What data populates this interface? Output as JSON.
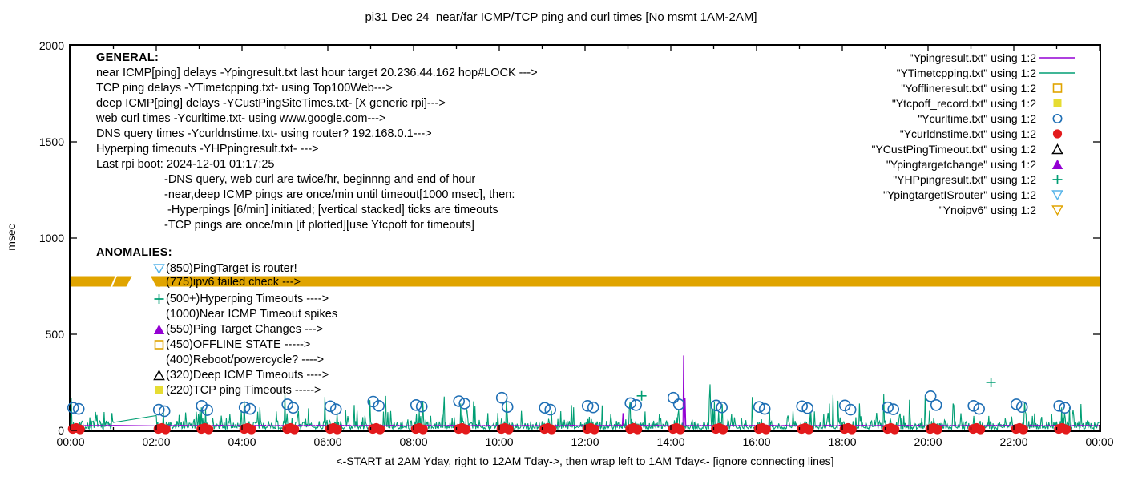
{
  "title": "pi31 Dec 24  near/far ICMP/TCP ping and curl times [No msmt 1AM-2AM]",
  "caption": "<-START at 2AM Yday, right to 12AM Tday->, then wrap left to 1AM Tday<- [ignore connecting lines]",
  "y_axis": {
    "label": "msec",
    "ticks": [
      "2000",
      "1500",
      "1000",
      "500",
      "0"
    ],
    "tick_values": [
      2000,
      1500,
      1000,
      500,
      0
    ]
  },
  "x_axis": {
    "ticks": [
      "00:00",
      "02:00",
      "04:00",
      "06:00",
      "08:00",
      "10:00",
      "12:00",
      "14:00",
      "16:00",
      "18:00",
      "20:00",
      "22:00",
      "00:00"
    ]
  },
  "annotations": {
    "general": {
      "header": "GENERAL:",
      "lines": [
        "near ICMP[ping] delays -Ypingresult.txt last hour target 20.236.44.162 hop#LOCK --->",
        "TCP ping delays -YTimetcpping.txt- using Top100Web--->",
        "deep ICMP[ping] delays -YCustPingSiteTimes.txt- [X generic rpi]--->",
        "web curl times -Ycurltime.txt- using www.google.com--->",
        "DNS query times -Ycurldnstime.txt- using router? 192.168.0.1--->",
        "Hyperping timeouts -YHPpingresult.txt- --->",
        "Last rpi boot: 2024-12-01 01:17:25"
      ],
      "indented_lines": [
        "-DNS query, web curl are twice/hr, beginnng and end of hour",
        "-near,deep ICMP pings are once/min until timeout[1000 msec], then:",
        " -Hyperpings [6/min] initiated; [vertical stacked] ticks are timeouts",
        "-TCP pings are once/min [if plotted][use Ytcpoff for timeouts]"
      ]
    },
    "anomalies": {
      "header": "ANOMALIES:",
      "items": [
        {
          "marker": "triangle-down-open",
          "color": "#56b4e9",
          "text": "(850)PingTarget is router!"
        },
        {
          "marker": "triangle-down-open",
          "color": "#e0a400",
          "text": "(775)ipv6 failed check --->",
          "hidden_behind_band": true
        },
        {
          "marker": "plus",
          "color": "#009e73",
          "text": "(500+)Hyperping Timeouts ---->"
        },
        {
          "marker": "none",
          "color": "#000000",
          "text": "(1000)Near ICMP Timeout spikes"
        },
        {
          "marker": "triangle-up-filled",
          "color": "#9400d3",
          "text": "(550)Ping Target Changes --->"
        },
        {
          "marker": "square-open",
          "color": "#e0a400",
          "text": "(450)OFFLINE STATE ----->"
        },
        {
          "marker": "none",
          "color": "#000000",
          "text": "(400)Reboot/powercycle? ---->"
        },
        {
          "marker": "triangle-up-open",
          "color": "#000000",
          "text": "(320)Deep ICMP Timeouts ---->"
        },
        {
          "marker": "square-filled",
          "color": "#e6dc32",
          "text": "(220)TCP ping Timeouts ----->"
        }
      ]
    }
  },
  "legend": {
    "items": [
      {
        "label": "\"Ypingresult.txt\" using 1:2",
        "marker": "line",
        "color": "#9400d3"
      },
      {
        "label": "\"YTimetcpping.txt\" using 1:2",
        "marker": "line",
        "color": "#009e73"
      },
      {
        "label": "\"Yofflineresult.txt\" using 1:2",
        "marker": "square-open",
        "color": "#e0a400"
      },
      {
        "label": "\"Ytcpoff_record.txt\" using 1:2",
        "marker": "square-filled",
        "color": "#e6dc32"
      },
      {
        "label": "\"Ycurltime.txt\" using 1:2",
        "marker": "circle-open",
        "color": "#1f6fb5"
      },
      {
        "label": "\"Ycurldnstime.txt\" using 1:2",
        "marker": "circle-filled",
        "color": "#e31a1c"
      },
      {
        "label": "\"YCustPingTimeout.txt\" using 1:2",
        "marker": "triangle-up-open",
        "color": "#000000"
      },
      {
        "label": "\"Ypingtargetchange\" using 1:2",
        "marker": "triangle-up-filled",
        "color": "#9400d3"
      },
      {
        "label": "\"YHPpingresult.txt\" using 1:2",
        "marker": "plus",
        "color": "#009e73"
      },
      {
        "label": "\"YpingtargetISrouter\" using 1:2",
        "marker": "triangle-down-open",
        "color": "#56b4e9"
      },
      {
        "label": "\"Ynoipv6\" using 1:2",
        "marker": "triangle-down-open",
        "color": "#e0a400"
      }
    ]
  },
  "chart_data": {
    "type": "line",
    "title": "pi31 Dec 24  near/far ICMP/TCP ping and curl times [No msmt 1AM-2AM]",
    "ylabel": "msec",
    "xlabel": "<-START at 2AM Yday, right to 12AM Tday->, then wrap left to 1AM Tday<- [ignore connecting lines]",
    "xlim_hours": [
      0,
      24
    ],
    "ylim": [
      0,
      2000
    ],
    "grid": false,
    "legend_position": "top-right",
    "no_measurement_gap_hours": [
      1,
      2
    ],
    "series": [
      {
        "name": "Ypingresult.txt",
        "style": "line",
        "color": "#9400d3",
        "baseline_msec": 25,
        "jitter_msec": 4,
        "spikes": [
          [
            12.88,
            90
          ],
          [
            14.3,
            390
          ],
          [
            14.34,
            170
          ]
        ]
      },
      {
        "name": "YTimetcpping.txt",
        "style": "line",
        "color": "#009e73",
        "noise": {
          "seed": 7,
          "base_min": 6,
          "base_max": 50,
          "mid_max": 105,
          "spike_max": 200
        },
        "big_spikes": [
          [
            3.05,
            120
          ],
          [
            5.93,
            175
          ],
          [
            8.22,
            150
          ],
          [
            9.1,
            140
          ],
          [
            10.17,
            165
          ],
          [
            12.4,
            130
          ],
          [
            13.05,
            150
          ],
          [
            14.92,
            240
          ],
          [
            16.3,
            130
          ],
          [
            18.4,
            140
          ],
          [
            19.93,
            185
          ],
          [
            20.6,
            130
          ],
          [
            22.25,
            150
          ],
          [
            23.3,
            120
          ]
        ]
      },
      {
        "name": "Yofflineresult.txt",
        "style": "points",
        "marker": "square-open",
        "color": "#e0a400",
        "points": []
      },
      {
        "name": "Ytcpoff_record.txt",
        "style": "points",
        "marker": "square-filled",
        "color": "#e6dc32",
        "points": []
      },
      {
        "name": "Ycurltime.txt",
        "style": "points",
        "marker": "circle-open",
        "color": "#1f6fb5",
        "hourly_pairs": {
          "hours": [
            0,
            2,
            3,
            4,
            5,
            6,
            7,
            8,
            9,
            10,
            11,
            12,
            13,
            14,
            15,
            16,
            17,
            18,
            19,
            20,
            21,
            22,
            23
          ],
          "offsets": [
            0.06,
            0.19
          ],
          "values": [
            [
              118,
              112
            ],
            [
              108,
              100
            ],
            [
              128,
              106
            ],
            [
              120,
              112
            ],
            [
              136,
              118
            ],
            [
              126,
              110
            ],
            [
              150,
              128
            ],
            [
              132,
              124
            ],
            [
              152,
              140
            ],
            [
              170,
              122
            ],
            [
              118,
              108
            ],
            [
              128,
              120
            ],
            [
              142,
              132
            ],
            [
              170,
              136
            ],
            [
              130,
              120
            ],
            [
              122,
              112
            ],
            [
              126,
              116
            ],
            [
              130,
              108
            ],
            [
              120,
              110
            ],
            [
              178,
              132
            ],
            [
              128,
              112
            ],
            [
              136,
              122
            ],
            [
              128,
              118
            ]
          ]
        }
      },
      {
        "name": "Ycurldnstime.txt",
        "style": "points",
        "marker": "circle-filled",
        "color": "#e31a1c",
        "hourly_clusters": {
          "hours": [
            0,
            2,
            3,
            4,
            5,
            6,
            7,
            8,
            9,
            10,
            11,
            12,
            13,
            14,
            15,
            16,
            17,
            18,
            19,
            20,
            21,
            22,
            23
          ],
          "offsets": [
            0.05,
            0.13,
            0.22
          ],
          "values": [
            8,
            13,
            6
          ]
        }
      },
      {
        "name": "YCustPingTimeout.txt",
        "style": "points",
        "marker": "triangle-up-open",
        "color": "#000000",
        "points": []
      },
      {
        "name": "Ypingtargetchange",
        "style": "points",
        "marker": "triangle-up-filled",
        "color": "#9400d3",
        "points": []
      },
      {
        "name": "YHPpingresult.txt",
        "style": "points",
        "marker": "plus",
        "color": "#009e73",
        "points": [
          [
            13.32,
            180
          ],
          [
            21.47,
            250
          ]
        ]
      },
      {
        "name": "YpingtargetISrouter",
        "style": "points",
        "marker": "triangle-down-open",
        "color": "#56b4e9",
        "points": []
      },
      {
        "name": "Ynoipv6",
        "style": "band-of-markers",
        "marker": "triangle-down-open",
        "color": "#e0a400",
        "band_msec": 775,
        "segments_hours": [
          [
            0,
            1.3
          ],
          [
            2,
            24
          ]
        ]
      }
    ]
  }
}
